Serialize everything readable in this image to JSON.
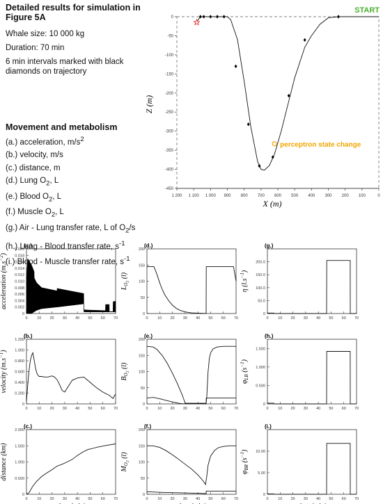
{
  "header": {
    "title_line1": "Detailed results for simulation in",
    "title_line2": "Figure 5A",
    "whale_size": "Whale size: 10 000 kg",
    "duration": "Duration: 70 min",
    "intervals_line1": "6 min intervals marked with black",
    "intervals_line2": "diamonds on trajectory"
  },
  "movement": {
    "title": "Movement and metabolism",
    "items": [
      {
        "prefix": "(a.) acceleration, m/s",
        "sup": "2",
        "sub": "",
        "suffix": ""
      },
      {
        "prefix": "(b.) velocity, m/s",
        "sup": "",
        "sub": "",
        "suffix": ""
      },
      {
        "prefix": "(c.) distance, m",
        "sup": "",
        "sub": "",
        "suffix": ""
      },
      {
        "prefix": "(d.) Lung O",
        "sub": "2",
        "sup": "",
        "suffix": ", L"
      },
      {
        "prefix": "(e.) Blood O",
        "sub": "2",
        "sup": "",
        "suffix": ", L"
      },
      {
        "prefix": "(f.) Muscle O",
        "sub": "2",
        "sup": "",
        "suffix": ", L"
      },
      {
        "prefix": "(g.) Air - Lung transfer rate, L of O",
        "sub": "2",
        "sup": "",
        "suffix": "/s"
      },
      {
        "prefix": "(h.) Lung - Blood transfer rate, s",
        "sup": "-1",
        "sub": "",
        "suffix": ""
      },
      {
        "prefix": "(i.) Blood - Muscle transfer rate, s",
        "sup": "-1",
        "sub": "",
        "suffix": ""
      }
    ]
  },
  "chart_data": [
    {
      "id": "trajectory",
      "type": "line",
      "xlabel": "X (m)",
      "ylabel": "Z (m)",
      "xlim": [
        1200,
        0
      ],
      "ylim": [
        -450,
        0
      ],
      "xticks": [
        1200,
        1100,
        1000,
        900,
        800,
        700,
        600,
        500,
        400,
        300,
        200,
        100,
        0
      ],
      "xtick_labels": [
        "1 200",
        "1 100",
        "1 000",
        "900",
        "800",
        "700",
        "600",
        "500",
        "400",
        "300",
        "200",
        "100",
        "0"
      ],
      "yticks": [
        0,
        -50,
        -100,
        -150,
        -200,
        -250,
        -300,
        -350,
        -400,
        -450
      ],
      "yticks_labels": [
        "0",
        "-50",
        "-100",
        "-150",
        "-200",
        "-250",
        "-300",
        "-350",
        "-400",
        "-450"
      ],
      "start_label": "START",
      "perceptron_label": "perceptron state change",
      "x": [
        0,
        100,
        200,
        240,
        300,
        350,
        400,
        440,
        500,
        540,
        580,
        620,
        650,
        680,
        700,
        720,
        760,
        800,
        840,
        880,
        900,
        920,
        960,
        1000,
        1040,
        1060,
        1080
      ],
      "y": [
        0,
        0,
        0,
        0,
        -3,
        -20,
        -50,
        -80,
        -160,
        -230,
        -300,
        -360,
        -390,
        -402,
        -400,
        -380,
        -290,
        -170,
        -60,
        -8,
        0,
        0,
        0,
        0,
        0,
        0,
        -12
      ],
      "diamonds": [
        [
          240,
          0
        ],
        [
          440,
          -61
        ],
        [
          535,
          -207
        ],
        [
          630,
          -368
        ],
        [
          710,
          -391
        ],
        [
          775,
          -282
        ],
        [
          850,
          -130
        ],
        [
          920,
          0
        ],
        [
          960,
          0
        ],
        [
          1000,
          0
        ],
        [
          1040,
          0
        ],
        [
          1060,
          0
        ]
      ],
      "perceptron_point": [
        620,
        -333
      ],
      "end_point": [
        1082,
        -15
      ]
    },
    {
      "id": "a",
      "panel_label": "(a.)",
      "type": "area",
      "ylabel": "acceleration (m.s^-2)",
      "xlim": [
        0,
        70
      ],
      "ylim": [
        0,
        0.02
      ],
      "yticks": [
        0,
        0.002,
        0.004,
        0.006,
        0.008,
        0.01,
        0.012,
        0.014,
        0.016,
        0.018,
        0.02
      ],
      "ytick_labels": [
        "0",
        "0.002",
        "0.004",
        "0.006",
        "0.008",
        "0.010",
        "0.012",
        "0.014",
        "0.016",
        "0.018",
        "0.020"
      ],
      "xticks": [
        0,
        10,
        20,
        30,
        40,
        50,
        60,
        70
      ],
      "xtick_labels": [
        "0",
        "10",
        "20",
        "30",
        "40",
        "50",
        "60",
        "70"
      ],
      "upper": {
        "x": [
          0,
          1,
          4,
          6,
          6.1,
          8,
          12,
          24,
          24.1,
          25,
          45,
          45.1,
          47,
          62,
          62.1,
          65,
          65.1,
          68,
          68.1,
          70
        ],
        "y": [
          0.011,
          0.017,
          0.015,
          0.013,
          0.011,
          0.0095,
          0.008,
          0.007,
          0.0078,
          0.0077,
          0.0062,
          0.0012,
          0.0011,
          0.0009,
          0.0028,
          0.0028,
          0.0006,
          0.0006,
          0.0037,
          0.0038
        ]
      },
      "lower": {
        "x": [
          0,
          4,
          8,
          12,
          24,
          24.1,
          45,
          45.1,
          47,
          62,
          62.1,
          65,
          65.1,
          68,
          68.1,
          70
        ],
        "y": [
          0,
          0,
          0.001,
          0.0015,
          0.002,
          0.002,
          0.003,
          0.0005,
          0.0005,
          0.0005,
          0.0005,
          0.0005,
          0.0005,
          0.0005,
          0.0005,
          0.0005
        ]
      }
    },
    {
      "id": "b",
      "panel_label": "(b.)",
      "type": "line",
      "ylabel": "velocity (m.s^-1)",
      "xlim": [
        0,
        70
      ],
      "ylim": [
        0,
        1.2
      ],
      "yticks": [
        0,
        0.2,
        0.4,
        0.6,
        0.8,
        1.0,
        1.2
      ],
      "ytick_labels": [
        "0",
        "0.200",
        "0.400",
        "0.600",
        "0.800",
        "1.000",
        "1.200"
      ],
      "xticks": [
        0,
        10,
        20,
        30,
        40,
        50,
        60,
        70
      ],
      "xtick_labels": [
        "0",
        "10",
        "20",
        "30",
        "40",
        "50",
        "60",
        "70"
      ],
      "x": [
        0,
        1,
        2,
        3,
        4,
        5,
        6,
        7,
        8,
        9,
        10,
        12,
        14,
        17,
        20,
        22,
        24,
        26,
        28,
        30,
        33,
        36,
        40,
        45,
        47,
        50,
        55,
        60,
        65,
        68,
        69,
        70
      ],
      "y": [
        0.05,
        0.35,
        0.62,
        0.8,
        0.9,
        0.95,
        0.82,
        0.68,
        0.58,
        0.53,
        0.51,
        0.51,
        0.5,
        0.5,
        0.52,
        0.5,
        0.45,
        0.36,
        0.25,
        0.22,
        0.33,
        0.44,
        0.48,
        0.5,
        0.46,
        0.4,
        0.3,
        0.22,
        0.16,
        0.1,
        0.15,
        0.18
      ]
    },
    {
      "id": "c",
      "panel_label": "(c.)",
      "type": "line",
      "ylabel": "distance (km)",
      "xlim": [
        0,
        70
      ],
      "ylim": [
        0,
        2.0
      ],
      "yticks": [
        0,
        0.5,
        1.0,
        1.5,
        2.0
      ],
      "ytick_labels": [
        "0",
        "0.500",
        "1.000",
        "1.500",
        "2.000"
      ],
      "xticks": [
        0,
        10,
        20,
        30,
        40,
        50,
        60,
        70
      ],
      "xtick_labels": [
        "0",
        "10",
        "20",
        "30",
        "40",
        "50",
        "60",
        "70"
      ],
      "xlabel": "time (min)",
      "x": [
        0,
        2,
        5,
        8,
        12,
        16,
        20,
        24,
        28,
        32,
        36,
        40,
        44,
        48,
        52,
        56,
        60,
        64,
        70
      ],
      "y": [
        0,
        0.05,
        0.25,
        0.4,
        0.55,
        0.66,
        0.76,
        0.87,
        0.93,
        1.0,
        1.08,
        1.2,
        1.3,
        1.38,
        1.42,
        1.46,
        1.49,
        1.52,
        1.56
      ]
    },
    {
      "id": "d",
      "panel_label": "(d.)",
      "type": "line",
      "ylabel": "L_O2 (l)",
      "xlim": [
        0,
        70
      ],
      "ylim": [
        0,
        200
      ],
      "yticks": [
        0,
        50,
        100,
        150,
        200
      ],
      "ytick_labels": [
        "0",
        "50",
        "100",
        "150",
        "200"
      ],
      "xticks": [
        0,
        10,
        20,
        30,
        40,
        50,
        60,
        70
      ],
      "xtick_labels": [
        "0",
        "10",
        "20",
        "30",
        "40",
        "50",
        "60",
        "70"
      ],
      "x": [
        0,
        5.5,
        6,
        8,
        10,
        12,
        14,
        17,
        20,
        23,
        26,
        30,
        35,
        40,
        45,
        46.5,
        46.6,
        68,
        70
      ],
      "y": [
        145,
        145,
        140,
        120,
        95,
        75,
        58,
        40,
        26,
        16,
        10,
        5,
        2,
        1,
        0.5,
        0.5,
        145,
        145,
        100
      ]
    },
    {
      "id": "e",
      "panel_label": "(e.)",
      "type": "line",
      "ylabel": "B_O2 (l)",
      "xlim": [
        0,
        70
      ],
      "ylim": [
        0,
        200
      ],
      "yticks": [
        0,
        50,
        100,
        150,
        200
      ],
      "ytick_labels": [
        "0",
        "50",
        "100",
        "150",
        "200"
      ],
      "xticks": [
        0,
        10,
        20,
        30,
        40,
        50,
        60,
        70
      ],
      "xtick_labels": [
        "0",
        "10",
        "20",
        "30",
        "40",
        "50",
        "60",
        "70"
      ],
      "series": [
        {
          "x": [
            0,
            5,
            8,
            12,
            16,
            20,
            24,
            28,
            30,
            46.5,
            47,
            48,
            49,
            50,
            52,
            55,
            60,
            70
          ],
          "y": [
            178,
            176,
            168,
            150,
            125,
            95,
            62,
            25,
            2,
            2,
            20,
            100,
            140,
            158,
            170,
            176,
            178,
            178
          ]
        },
        {
          "x": [
            0,
            5,
            10,
            15,
            20,
            25,
            28,
            30,
            46.5,
            46.6,
            70
          ],
          "y": [
            18,
            20,
            16,
            11,
            6,
            2,
            0.5,
            0.5,
            0.5,
            18,
            18
          ]
        }
      ]
    },
    {
      "id": "f",
      "panel_label": "(f.)",
      "type": "line",
      "ylabel": "M_O2 (l)",
      "xlim": [
        0,
        70
      ],
      "ylim": [
        0,
        200
      ],
      "yticks": [
        0,
        50,
        100,
        150,
        200
      ],
      "ytick_labels": [
        "0",
        "50",
        "100",
        "150",
        "200"
      ],
      "xticks": [
        0,
        10,
        20,
        30,
        40,
        50,
        60,
        70
      ],
      "xtick_labels": [
        "0",
        "10",
        "20",
        "30",
        "40",
        "50",
        "60",
        "70"
      ],
      "xlabel": "time (min)",
      "series": [
        {
          "x": [
            0,
            5,
            10,
            15,
            20,
            25,
            30,
            35,
            40,
            44,
            46,
            47,
            48,
            50,
            53,
            56,
            60,
            65,
            70
          ],
          "y": [
            150,
            150,
            145,
            135,
            122,
            108,
            93,
            78,
            60,
            42,
            30,
            55,
            90,
            118,
            135,
            144,
            148,
            150,
            150
          ]
        },
        {
          "x": [
            0,
            10,
            20,
            30,
            40,
            46.5,
            46.6,
            70
          ],
          "y": [
            8,
            6,
            5,
            4,
            3,
            2,
            10,
            10
          ]
        }
      ]
    },
    {
      "id": "g",
      "panel_label": "(g.)",
      "type": "line",
      "ylabel": "eta (l.s^-1)",
      "xlim": [
        0,
        70
      ],
      "ylim": [
        0,
        250
      ],
      "yticks": [
        0,
        50,
        100,
        150,
        200
      ],
      "ytick_labels": [
        "0",
        "50.0",
        "100.0",
        "150.0",
        "200.0"
      ],
      "xticks": [
        0,
        10,
        20,
        30,
        40,
        50,
        60,
        70
      ],
      "xtick_labels": [
        "0",
        "10",
        "20",
        "30",
        "40",
        "50",
        "60",
        "70"
      ],
      "x": [
        0,
        5,
        5.1,
        46.5,
        46.6,
        65,
        65.1,
        70
      ],
      "y": [
        2,
        2,
        0,
        0,
        205,
        205,
        0,
        0
      ]
    },
    {
      "id": "h",
      "panel_label": "(h.)",
      "type": "line",
      "ylabel": "phi_LB (s^-1)",
      "xlim": [
        0,
        70
      ],
      "ylim": [
        0,
        1.75
      ],
      "yticks": [
        0,
        0.5,
        1.0,
        1.5
      ],
      "ytick_labels": [
        "0",
        "0.500",
        "1.000",
        "1.500"
      ],
      "xticks": [
        0,
        10,
        20,
        30,
        40,
        50,
        60,
        70
      ],
      "xtick_labels": [
        "0",
        "10",
        "20",
        "30",
        "40",
        "50",
        "60",
        "70"
      ],
      "x": [
        0,
        5,
        5.1,
        46.5,
        46.6,
        65,
        65.1,
        70
      ],
      "y": [
        0.02,
        0.02,
        0,
        0,
        1.42,
        1.42,
        0,
        0
      ]
    },
    {
      "id": "i",
      "panel_label": "(i.)",
      "type": "line",
      "ylabel": "phi_BR (s^-1)",
      "xlim": [
        0,
        70
      ],
      "ylim": [
        0,
        15
      ],
      "yticks": [
        0,
        5,
        10
      ],
      "ytick_labels": [
        "0",
        "5.00",
        "10.00"
      ],
      "xticks": [
        0,
        10,
        20,
        30,
        40,
        50,
        60,
        70
      ],
      "xtick_labels": [
        "0",
        "10",
        "20",
        "30",
        "40",
        "50",
        "60",
        "70"
      ],
      "xlabel": "time (min)",
      "x": [
        0,
        5,
        5.1,
        46.5,
        46.6,
        65,
        65.1,
        70
      ],
      "y": [
        0.1,
        0.1,
        0,
        0,
        11.8,
        11.8,
        0,
        0
      ]
    }
  ],
  "axis_labels": {
    "a": {
      "main": "acceleration",
      "unit_open": " (m.s",
      "unit_sup": "−2",
      "unit_close": ")"
    },
    "b": {
      "main": "velocity",
      "unit_open": " (m.s",
      "unit_sup": "−1",
      "unit_close": ")"
    },
    "c": {
      "main": "distance",
      "unit_open": " (km)",
      "unit_sup": "",
      "unit_close": ""
    },
    "d": {
      "main": "L",
      "sub": "O",
      "subsub": "2",
      "unit": " (l)"
    },
    "e": {
      "main": "B",
      "sub": "O",
      "subsub": "2",
      "unit": " (l)"
    },
    "f": {
      "main": "M",
      "sub": "O",
      "subsub": "2",
      "unit": " (l)"
    },
    "g": {
      "main": "η",
      "unit_open": " (l.s",
      "unit_sup": "−1",
      "unit_close": ")"
    },
    "h": {
      "main": "φ",
      "sub": "LB",
      "unit_open": " (s",
      "unit_sup": "−1",
      "unit_close": ")"
    },
    "i": {
      "main": "φ",
      "sub": "BR",
      "unit_open": " (s",
      "unit_sup": "−1",
      "unit_close": ")"
    },
    "time": "time (min)"
  }
}
